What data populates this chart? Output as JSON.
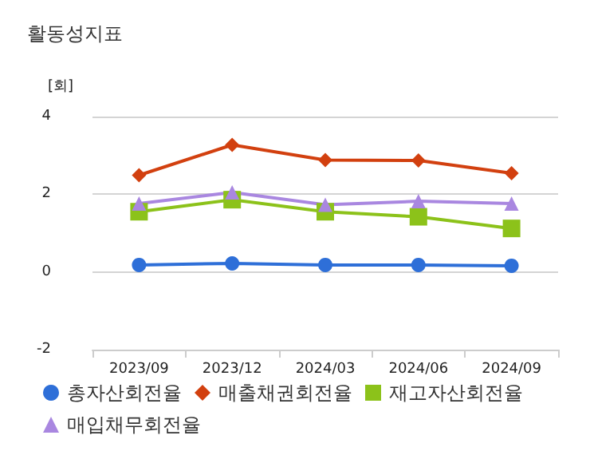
{
  "chart_data": {
    "type": "line",
    "title": "활동성지표",
    "ylabel": "[회]",
    "categories": [
      "2023/09",
      "2023/12",
      "2024/03",
      "2024/06",
      "2024/09"
    ],
    "series": [
      {
        "name": "총자산회전율",
        "color": "#2e6fd8",
        "marker": "circle",
        "values": [
          0.18,
          0.22,
          0.18,
          0.18,
          0.16
        ]
      },
      {
        "name": "매출채권회전율",
        "color": "#d2400f",
        "marker": "diamond",
        "values": [
          2.49,
          3.27,
          2.88,
          2.87,
          2.54
        ]
      },
      {
        "name": "재고자산회전율",
        "color": "#8cc21a",
        "marker": "square",
        "values": [
          1.55,
          1.86,
          1.55,
          1.42,
          1.12
        ]
      },
      {
        "name": "매입채무회전율",
        "color": "#a987e0",
        "marker": "triangle",
        "values": [
          1.76,
          2.05,
          1.73,
          1.82,
          1.76
        ]
      }
    ],
    "ylim": [
      -2,
      4
    ],
    "yticks": [
      -2,
      0,
      2,
      4
    ],
    "grid": "y",
    "legend": "bottom",
    "line_style": "solid"
  }
}
